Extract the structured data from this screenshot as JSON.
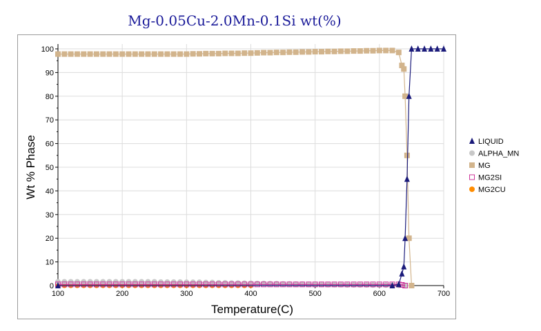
{
  "chart_data": {
    "type": "line",
    "title": "Mg-0.05Cu-2.0Mn-0.1Si wt(%)",
    "xlabel": "Temperature(C)",
    "ylabel": "Wt % Phase",
    "xlim": [
      100,
      700
    ],
    "ylim": [
      0,
      100
    ],
    "xticks": [
      100,
      200,
      300,
      400,
      500,
      600,
      700
    ],
    "yticks": [
      0,
      10,
      20,
      30,
      40,
      50,
      60,
      70,
      80,
      90,
      100
    ],
    "grid": true,
    "legend_position": "right",
    "series": [
      {
        "name": "LIQUID",
        "color": "#1a1a7a",
        "marker": "triangle",
        "x": [
          100,
          620,
          630,
          635,
          638,
          640,
          643,
          646,
          650,
          660,
          670,
          680,
          690,
          700
        ],
        "y": [
          0,
          0,
          0.5,
          5,
          8,
          20,
          45,
          80,
          100,
          100,
          100,
          100,
          100,
          100
        ]
      },
      {
        "name": "ALPHA_MN",
        "color": "#c8c8c8",
        "marker": "circle",
        "x": [
          100,
          110,
          120,
          130,
          140,
          150,
          160,
          170,
          180,
          190,
          200,
          210,
          220,
          230,
          240,
          250,
          260,
          270,
          280,
          290,
          300,
          310,
          320,
          330,
          340,
          350,
          360,
          370,
          380,
          390,
          400,
          410,
          420,
          430,
          440,
          450,
          460,
          470,
          480,
          490,
          500,
          510,
          520,
          530,
          540,
          550,
          560,
          570,
          580,
          590,
          600,
          610,
          620,
          630,
          640,
          650
        ],
        "y": [
          1.6,
          1.6,
          1.6,
          1.6,
          1.6,
          1.6,
          1.6,
          1.6,
          1.6,
          1.6,
          1.6,
          1.6,
          1.6,
          1.6,
          1.6,
          1.6,
          1.5,
          1.5,
          1.5,
          1.5,
          1.4,
          1.4,
          1.4,
          1.3,
          1.3,
          1.2,
          1.2,
          1.1,
          1.1,
          1.0,
          1.0,
          0.9,
          0.9,
          0.8,
          0.8,
          0.7,
          0.7,
          0.6,
          0.6,
          0.5,
          0.5,
          0.5,
          0.4,
          0.4,
          0.4,
          0.3,
          0.3,
          0.3,
          0.3,
          0.2,
          0.2,
          0.2,
          0.2,
          0.1,
          0,
          0
        ]
      },
      {
        "name": "MG",
        "color": "#d2b48c",
        "marker": "square",
        "x": [
          100,
          110,
          120,
          130,
          140,
          150,
          160,
          170,
          180,
          190,
          200,
          210,
          220,
          230,
          240,
          250,
          260,
          270,
          280,
          290,
          300,
          310,
          320,
          330,
          340,
          350,
          360,
          370,
          380,
          390,
          400,
          410,
          420,
          430,
          440,
          450,
          460,
          470,
          480,
          490,
          500,
          510,
          520,
          530,
          540,
          550,
          560,
          570,
          580,
          590,
          600,
          610,
          620,
          630,
          635,
          638,
          640,
          643,
          646,
          650
        ],
        "y": [
          97.8,
          97.8,
          97.8,
          97.8,
          97.8,
          97.8,
          97.8,
          97.8,
          97.8,
          97.8,
          97.8,
          97.8,
          97.8,
          97.8,
          97.8,
          97.8,
          97.8,
          97.8,
          97.8,
          97.8,
          97.8,
          97.9,
          97.9,
          98.0,
          98.0,
          98.0,
          98.1,
          98.1,
          98.1,
          98.2,
          98.2,
          98.3,
          98.4,
          98.4,
          98.5,
          98.5,
          98.6,
          98.6,
          98.7,
          98.7,
          98.8,
          98.8,
          98.9,
          98.9,
          99.0,
          99.0,
          99.1,
          99.1,
          99.2,
          99.2,
          99.3,
          99.3,
          99.3,
          98.5,
          93,
          91.5,
          80,
          55,
          20,
          0
        ]
      },
      {
        "name": "MG2SI",
        "color": "#cc3399",
        "marker": "square-open",
        "x": [
          100,
          110,
          120,
          130,
          140,
          150,
          160,
          170,
          180,
          190,
          200,
          210,
          220,
          230,
          240,
          250,
          260,
          270,
          280,
          290,
          300,
          310,
          320,
          330,
          340,
          350,
          360,
          370,
          380,
          390,
          400,
          410,
          420,
          430,
          440,
          450,
          460,
          470,
          480,
          490,
          500,
          510,
          520,
          530,
          540,
          550,
          560,
          570,
          580,
          590,
          600,
          610,
          620,
          630,
          635,
          640
        ],
        "y": [
          0.5,
          0.5,
          0.5,
          0.5,
          0.5,
          0.5,
          0.5,
          0.5,
          0.5,
          0.5,
          0.5,
          0.5,
          0.5,
          0.5,
          0.5,
          0.5,
          0.5,
          0.5,
          0.5,
          0.5,
          0.5,
          0.5,
          0.5,
          0.5,
          0.5,
          0.5,
          0.5,
          0.5,
          0.5,
          0.5,
          0.5,
          0.5,
          0.5,
          0.5,
          0.5,
          0.5,
          0.5,
          0.5,
          0.5,
          0.5,
          0.5,
          0.5,
          0.5,
          0.5,
          0.5,
          0.5,
          0.5,
          0.5,
          0.5,
          0.5,
          0.5,
          0.5,
          0.5,
          0.5,
          0.3,
          0
        ]
      },
      {
        "name": "MG2CU",
        "color": "#ff8c00",
        "marker": "circle",
        "x": [
          100,
          110,
          120,
          130,
          140,
          150,
          160,
          170,
          180,
          190,
          200,
          210,
          220,
          230,
          240,
          250,
          260,
          270,
          280,
          290,
          300,
          310,
          320,
          330,
          340,
          350,
          360,
          370,
          380,
          390,
          400
        ],
        "y": [
          0.1,
          0.1,
          0.1,
          0.1,
          0.1,
          0.1,
          0.1,
          0.1,
          0.1,
          0.1,
          0.1,
          0.1,
          0.1,
          0.1,
          0.1,
          0.1,
          0.1,
          0.1,
          0.1,
          0.1,
          0.1,
          0.1,
          0.1,
          0.1,
          0.1,
          0.1,
          0.1,
          0.1,
          0.1,
          0.1,
          0.1
        ]
      }
    ]
  }
}
